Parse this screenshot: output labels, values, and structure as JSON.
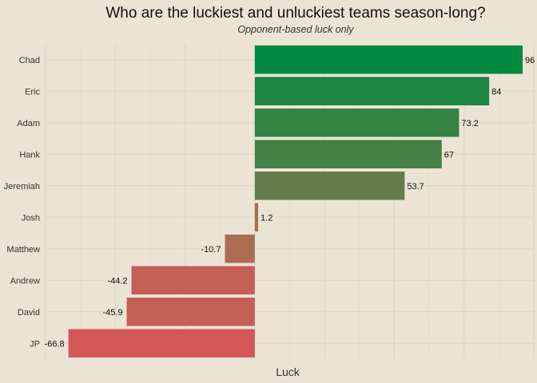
{
  "chart_data": {
    "type": "bar",
    "orientation": "horizontal",
    "title": "Who are the luckiest and unluckiest teams season-long?",
    "subtitle": "Opponent-based luck only",
    "xlabel": "Luck",
    "ylabel": "",
    "xlim": [
      -75,
      100
    ],
    "grid": true,
    "categories": [
      "Chad",
      "Eric",
      "Adam",
      "Hank",
      "Jeremiah",
      "Josh",
      "Matthew",
      "Andrew",
      "David",
      "JP"
    ],
    "values": [
      96,
      84,
      73.2,
      67,
      53.7,
      1.2,
      -10.7,
      -44.2,
      -45.9,
      -66.8
    ],
    "data_labels": [
      "96",
      "84",
      "73.2",
      "67",
      "53.7",
      "1.2",
      "-10.7",
      "-44.2",
      "-45.9",
      "-66.8"
    ],
    "colors": {
      "positive_max": "#00883e",
      "positive_min": "#647c49",
      "near_zero": "#a27150",
      "negative_max": "#d45757",
      "grid": "#ddd6c6",
      "background": "#ebe4d4"
    }
  }
}
